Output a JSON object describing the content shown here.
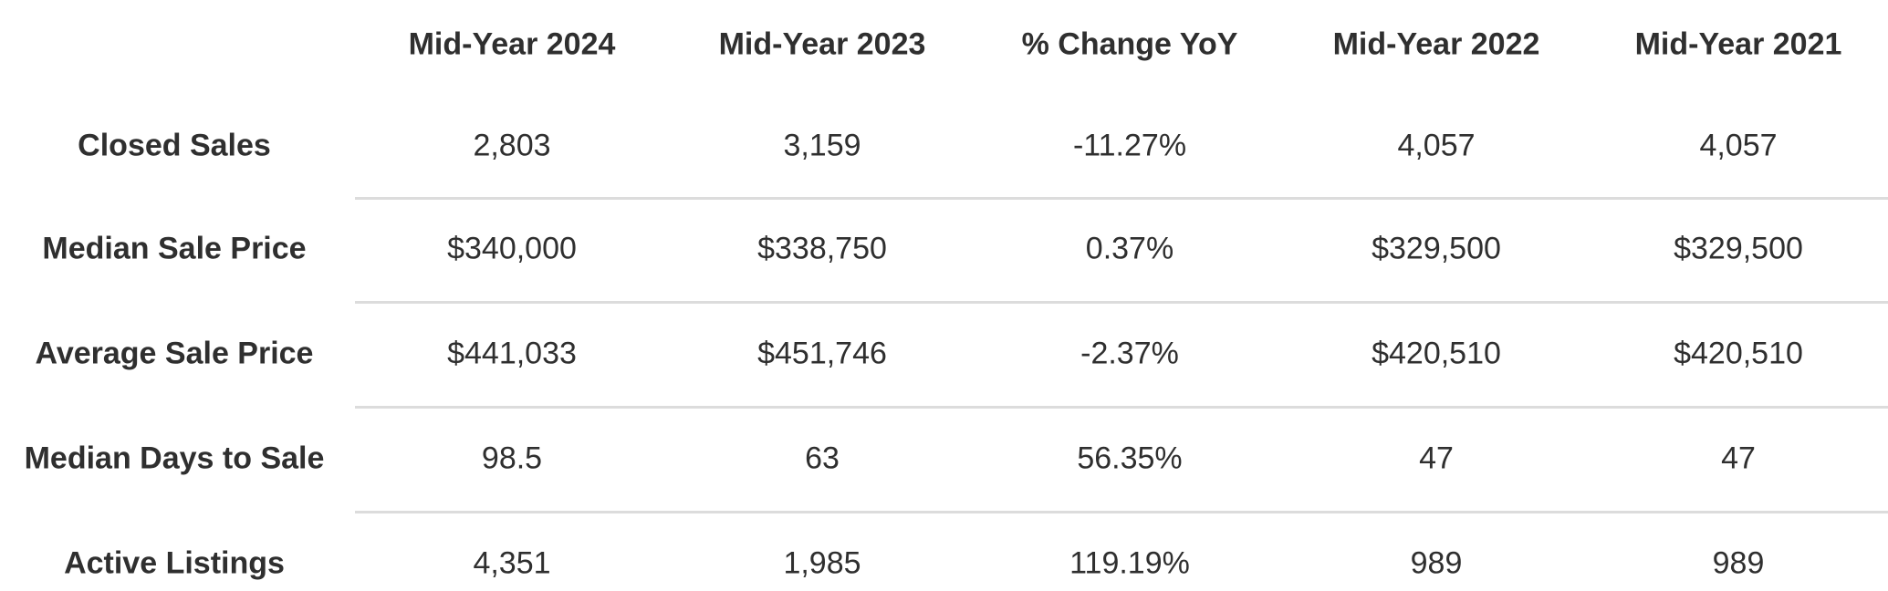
{
  "table": {
    "columns": [
      "Mid-Year 2024",
      "Mid-Year 2023",
      "% Change YoY",
      "Mid-Year 2022",
      "Mid-Year 2021"
    ],
    "rows": [
      {
        "label": "Closed Sales",
        "cells": [
          "2,803",
          "3,159",
          "-11.27%",
          "4,057",
          "4,057"
        ]
      },
      {
        "label": "Median Sale Price",
        "cells": [
          "$340,000",
          "$338,750",
          "0.37%",
          "$329,500",
          "$329,500"
        ]
      },
      {
        "label": "Average Sale Price",
        "cells": [
          "$441,033",
          "$451,746",
          "-2.37%",
          "$420,510",
          "$420,510"
        ]
      },
      {
        "label": "Median Days to Sale",
        "cells": [
          "98.5",
          "63",
          "56.35%",
          "47",
          "47"
        ]
      },
      {
        "label": "Active Listings",
        "cells": [
          "4,351",
          "1,985",
          "119.19%",
          "989",
          "989"
        ]
      }
    ]
  }
}
